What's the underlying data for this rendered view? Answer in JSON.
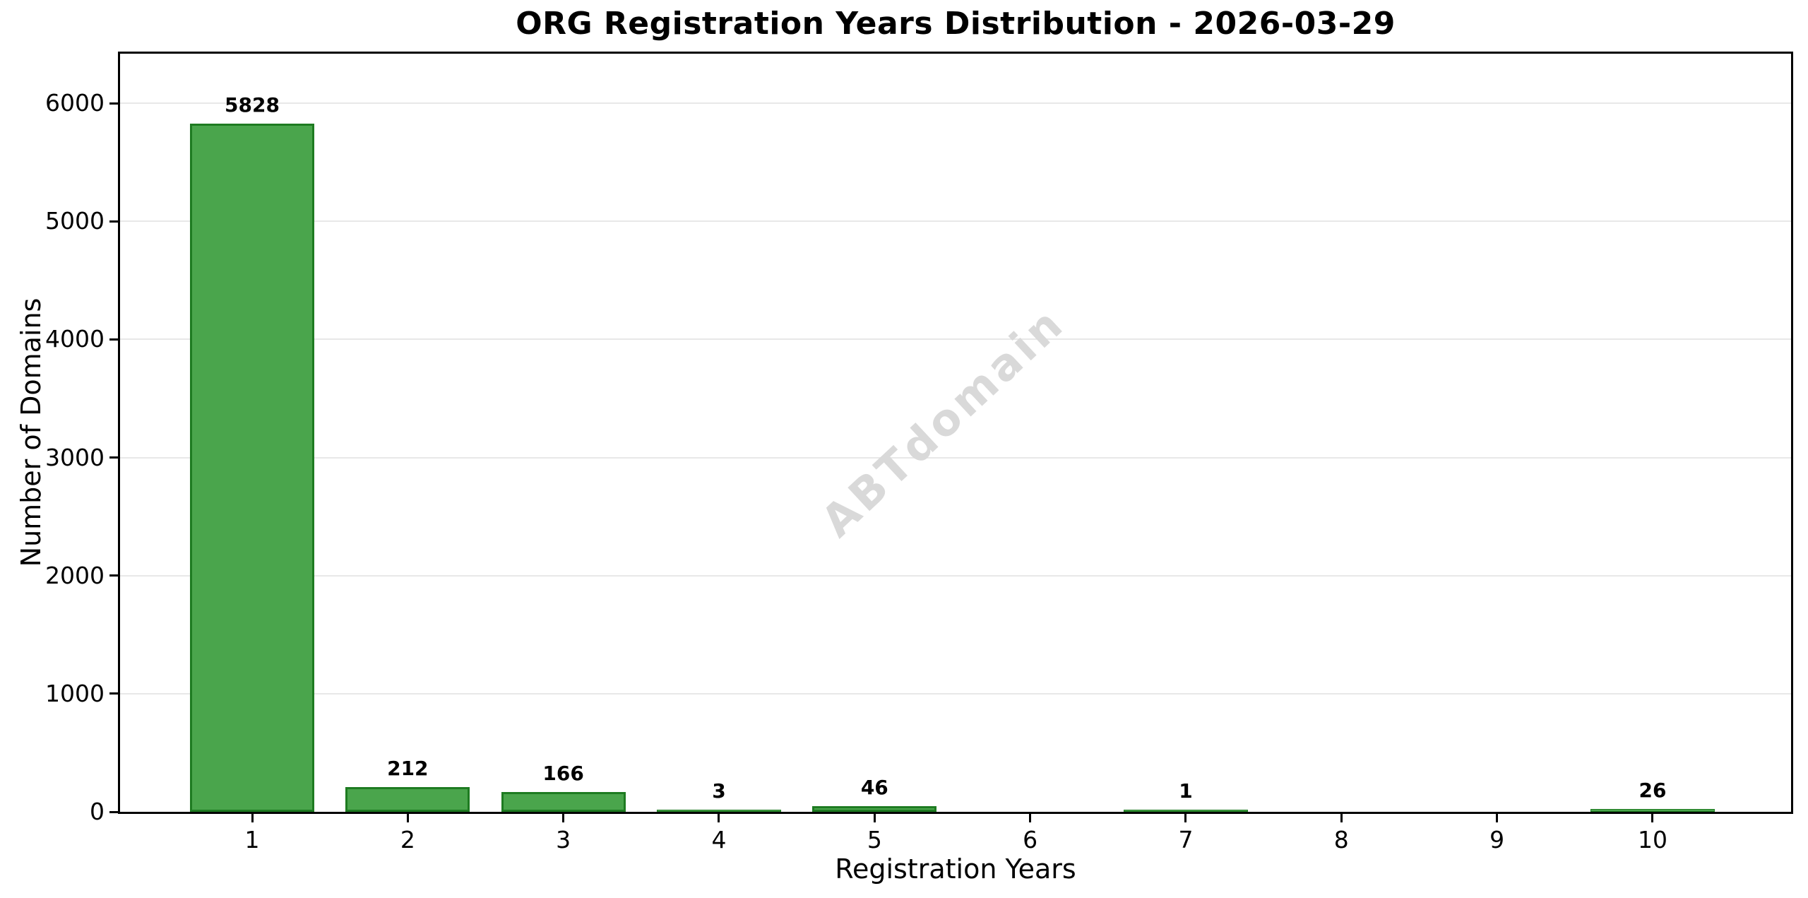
{
  "title": "ORG Registration Years Distribution - 2026-03-29",
  "watermark": "ABTdomain",
  "chart_data": {
    "type": "bar",
    "title": "ORG Registration Years Distribution - 2026-03-29",
    "xlabel": "Registration Years",
    "ylabel": "Number of Domains",
    "categories": [
      1,
      2,
      3,
      4,
      5,
      6,
      7,
      8,
      9,
      10
    ],
    "values": [
      5828,
      212,
      166,
      3,
      46,
      0,
      1,
      0,
      0,
      26
    ],
    "bar_labels": [
      "5828",
      "212",
      "166",
      "3",
      "46",
      "",
      "1",
      "",
      "",
      "26"
    ],
    "yticks": [
      0,
      1000,
      2000,
      3000,
      4000,
      5000,
      6000
    ],
    "ylim": [
      0,
      6420
    ],
    "grid": "horizontal-light",
    "legend": "none",
    "watermark_text": "ABTdomain",
    "colors": {
      "bar_fill": "#4aa54c",
      "bar_edge": "#1e7b21",
      "grid": "#e8e8e8",
      "spine": "#000000",
      "text": "#000000",
      "watermark": "#d9d9d9",
      "background": "#ffffff"
    }
  }
}
